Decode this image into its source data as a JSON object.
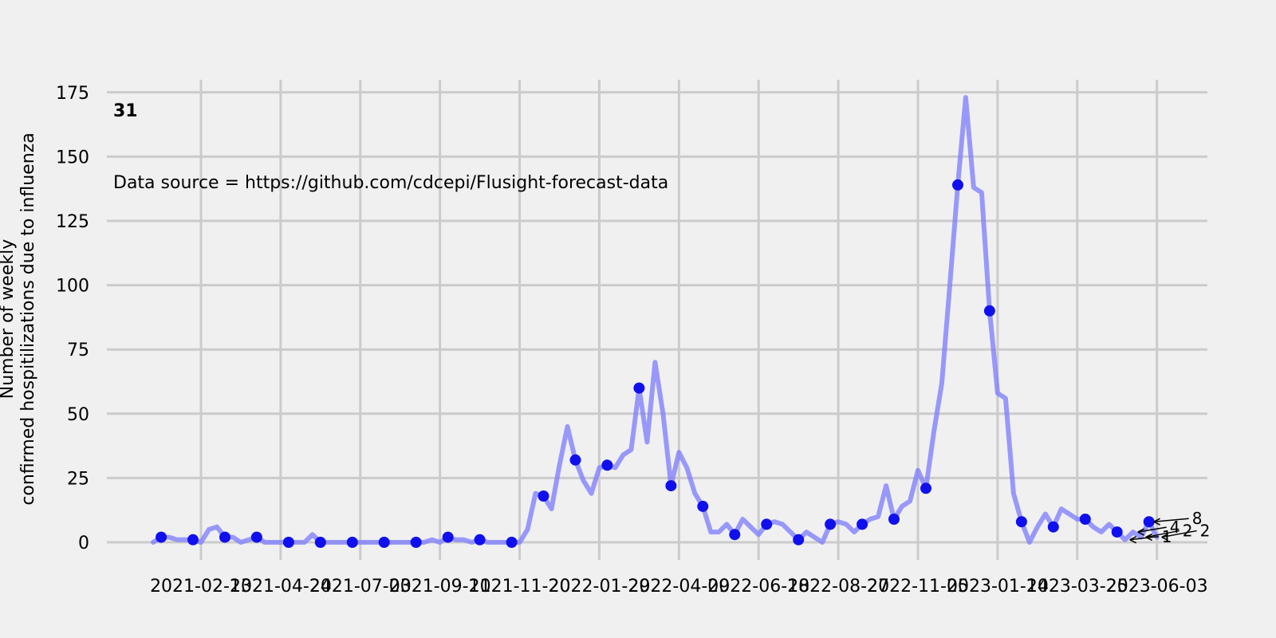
{
  "chart_data": {
    "type": "line",
    "panel_label": "31",
    "annotation": "Data source = https://github.com/cdcepi/Flusight-forecast-data",
    "xlabel": "",
    "ylabel_lines": [
      "Number of weekly",
      "confirmed hospitilizations due to influenza"
    ],
    "ylim": [
      -5,
      178
    ],
    "yticks": [
      0,
      25,
      50,
      75,
      100,
      125,
      150,
      175
    ],
    "xticks": [
      "2021-02-13",
      "2021-04-24",
      "2021-07-03",
      "2021-09-11",
      "2021-11-20",
      "2022-01-29",
      "2022-04-09",
      "2022-06-18",
      "2022-08-27",
      "2022-11-05",
      "2023-01-14",
      "2023-03-25",
      "2023-06-03"
    ],
    "grid": true,
    "line_color": "#7b7bff",
    "marker_color": "#1010ee",
    "series": [
      {
        "values": [
          [
            "2021-01-02",
            0
          ],
          [
            "2021-01-09",
            2
          ],
          [
            "2021-01-16",
            2
          ],
          [
            "2021-01-23",
            1
          ],
          [
            "2021-01-30",
            1
          ],
          [
            "2021-02-06",
            1
          ],
          [
            "2021-02-13",
            0
          ],
          [
            "2021-02-20",
            5
          ],
          [
            "2021-02-27",
            6
          ],
          [
            "2021-03-06",
            2
          ],
          [
            "2021-03-13",
            2
          ],
          [
            "2021-03-20",
            0
          ],
          [
            "2021-03-27",
            1
          ],
          [
            "2021-04-03",
            2
          ],
          [
            "2021-04-10",
            0
          ],
          [
            "2021-04-17",
            0
          ],
          [
            "2021-04-24",
            0
          ],
          [
            "2021-05-01",
            0
          ],
          [
            "2021-05-08",
            0
          ],
          [
            "2021-05-15",
            0
          ],
          [
            "2021-05-22",
            3
          ],
          [
            "2021-05-29",
            0
          ],
          [
            "2021-06-05",
            0
          ],
          [
            "2021-06-12",
            0
          ],
          [
            "2021-06-19",
            0
          ],
          [
            "2021-06-26",
            0
          ],
          [
            "2021-07-03",
            0
          ],
          [
            "2021-07-10",
            0
          ],
          [
            "2021-07-17",
            0
          ],
          [
            "2021-07-24",
            0
          ],
          [
            "2021-07-31",
            0
          ],
          [
            "2021-08-07",
            0
          ],
          [
            "2021-08-14",
            0
          ],
          [
            "2021-08-21",
            0
          ],
          [
            "2021-08-28",
            0
          ],
          [
            "2021-09-04",
            1
          ],
          [
            "2021-09-11",
            0
          ],
          [
            "2021-09-18",
            2
          ],
          [
            "2021-09-25",
            1
          ],
          [
            "2021-10-02",
            1
          ],
          [
            "2021-10-09",
            0
          ],
          [
            "2021-10-16",
            1
          ],
          [
            "2021-10-23",
            0
          ],
          [
            "2021-10-30",
            0
          ],
          [
            "2021-11-06",
            0
          ],
          [
            "2021-11-13",
            0
          ],
          [
            "2021-11-20",
            0
          ],
          [
            "2021-11-27",
            5
          ],
          [
            "2021-12-04",
            19
          ],
          [
            "2021-12-11",
            18
          ],
          [
            "2021-12-18",
            13
          ],
          [
            "2021-12-25",
            30
          ],
          [
            "2022-01-01",
            45
          ],
          [
            "2022-01-08",
            32
          ],
          [
            "2022-01-15",
            24
          ],
          [
            "2022-01-22",
            19
          ],
          [
            "2022-01-29",
            29
          ],
          [
            "2022-02-05",
            30
          ],
          [
            "2022-02-12",
            29
          ],
          [
            "2022-02-19",
            34
          ],
          [
            "2022-02-26",
            36
          ],
          [
            "2022-03-05",
            60
          ],
          [
            "2022-03-12",
            39
          ],
          [
            "2022-03-19",
            70
          ],
          [
            "2022-03-26",
            50
          ],
          [
            "2022-04-02",
            22
          ],
          [
            "2022-04-09",
            35
          ],
          [
            "2022-04-16",
            29
          ],
          [
            "2022-04-23",
            19
          ],
          [
            "2022-04-30",
            14
          ],
          [
            "2022-05-07",
            4
          ],
          [
            "2022-05-14",
            4
          ],
          [
            "2022-05-21",
            7
          ],
          [
            "2022-05-28",
            3
          ],
          [
            "2022-06-04",
            9
          ],
          [
            "2022-06-11",
            6
          ],
          [
            "2022-06-18",
            3
          ],
          [
            "2022-06-25",
            7
          ],
          [
            "2022-07-02",
            8
          ],
          [
            "2022-07-09",
            7
          ],
          [
            "2022-07-16",
            4
          ],
          [
            "2022-07-23",
            1
          ],
          [
            "2022-07-30",
            4
          ],
          [
            "2022-08-06",
            2
          ],
          [
            "2022-08-13",
            0
          ],
          [
            "2022-08-20",
            7
          ],
          [
            "2022-08-27",
            8
          ],
          [
            "2022-09-03",
            7
          ],
          [
            "2022-09-10",
            4
          ],
          [
            "2022-09-17",
            7
          ],
          [
            "2022-09-24",
            9
          ],
          [
            "2022-10-01",
            10
          ],
          [
            "2022-10-08",
            22
          ],
          [
            "2022-10-15",
            9
          ],
          [
            "2022-10-22",
            14
          ],
          [
            "2022-10-29",
            16
          ],
          [
            "2022-11-05",
            28
          ],
          [
            "2022-11-12",
            21
          ],
          [
            "2022-11-19",
            43
          ],
          [
            "2022-11-26",
            62
          ],
          [
            "2022-12-03",
            100
          ],
          [
            "2022-12-10",
            139
          ],
          [
            "2022-12-17",
            173
          ],
          [
            "2022-12-24",
            138
          ],
          [
            "2022-12-31",
            136
          ],
          [
            "2023-01-07",
            90
          ],
          [
            "2023-01-14",
            58
          ],
          [
            "2023-01-21",
            56
          ],
          [
            "2023-01-28",
            19
          ],
          [
            "2023-02-04",
            8
          ],
          [
            "2023-02-11",
            0
          ],
          [
            "2023-02-18",
            6
          ],
          [
            "2023-02-25",
            11
          ],
          [
            "2023-03-04",
            6
          ],
          [
            "2023-03-11",
            13
          ],
          [
            "2023-03-18",
            11
          ],
          [
            "2023-03-25",
            9
          ],
          [
            "2023-04-01",
            9
          ],
          [
            "2023-04-08",
            6
          ],
          [
            "2023-04-15",
            4
          ],
          [
            "2023-04-22",
            7
          ],
          [
            "2023-04-29",
            4
          ],
          [
            "2023-05-06",
            1
          ],
          [
            "2023-05-13",
            4
          ],
          [
            "2023-05-20",
            2
          ],
          [
            "2023-05-27",
            8
          ],
          [
            "2023-06-03",
            2
          ]
        ]
      }
    ],
    "forecast_labels": [
      {
        "date": "2023-05-27",
        "value": 8,
        "label": "8"
      },
      {
        "date": "2023-05-13",
        "value": 4,
        "label": "4"
      },
      {
        "date": "2023-05-06",
        "value": 1,
        "label": "1"
      },
      {
        "date": "2023-05-20",
        "value": 2,
        "label": "2"
      },
      {
        "date": "2023-06-03",
        "value": 2,
        "label": "2"
      }
    ]
  }
}
